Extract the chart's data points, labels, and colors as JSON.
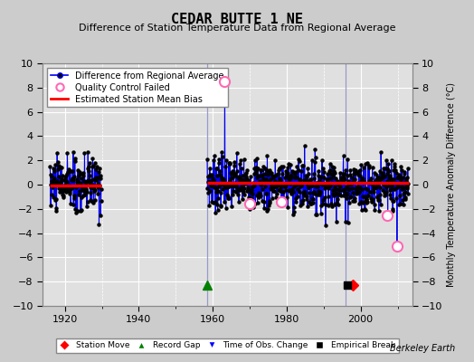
{
  "title": "CEDAR BUTTE 1 NE",
  "subtitle": "Difference of Station Temperature Data from Regional Average",
  "ylabel_right": "Monthly Temperature Anomaly Difference (°C)",
  "credit": "Berkeley Earth",
  "xlim": [
    1914,
    2014
  ],
  "ylim": [
    -10,
    10
  ],
  "yticks": [
    -10,
    -8,
    -6,
    -4,
    -2,
    0,
    2,
    4,
    6,
    8,
    10
  ],
  "xticks": [
    1920,
    1940,
    1960,
    1980,
    2000
  ],
  "bg_color": "#cccccc",
  "plot_bg_color": "#e0e0e0",
  "grid_color": "white",
  "data_color": "#0000ee",
  "marker_color": "black",
  "bias_color": "red",
  "seg1_start": 1916.0,
  "seg1_end": 1929.9,
  "seg2_start": 1958.5,
  "seg2_end": 2013.0,
  "bias1_level": -0.05,
  "bias2_level": 0.15,
  "vline_x": [
    1958.5,
    1996.0
  ],
  "record_gap_x": 1958.5,
  "record_gap_y": -8.3,
  "station_move_x": 1997.9,
  "station_move_y": -8.3,
  "empirical_break_x": 1996.3,
  "empirical_break_y": -8.3,
  "qc_failed_points": [
    [
      1963.25,
      8.5
    ],
    [
      1970.1,
      -1.6
    ],
    [
      1978.6,
      -1.4
    ],
    [
      2007.3,
      -2.5
    ],
    [
      2009.8,
      -5.1
    ]
  ],
  "seg1_seed": 10,
  "seg2_seed": 7
}
